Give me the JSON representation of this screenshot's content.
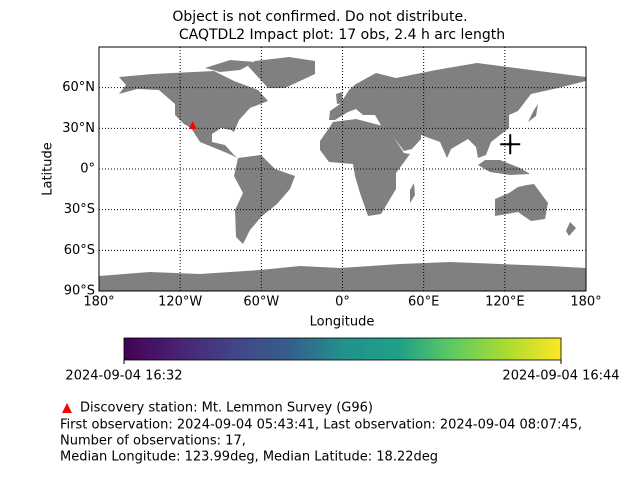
{
  "chart_data": {
    "type": "map",
    "warning": "Object is not confirmed. Do not distribute.",
    "title": "CAQTDL2 Impact plot: 17 obs, 2.4 h arc length",
    "xlabel": "Longitude",
    "ylabel": "Latitude",
    "xlim": [
      -180,
      180
    ],
    "ylim": [
      -90,
      90
    ],
    "xticks": [
      {
        "value": -180,
        "label": "180°"
      },
      {
        "value": -120,
        "label": "120°W"
      },
      {
        "value": -60,
        "label": "60°W"
      },
      {
        "value": 0,
        "label": "0°"
      },
      {
        "value": 60,
        "label": "60°E"
      },
      {
        "value": 120,
        "label": "120°E"
      },
      {
        "value": 180,
        "label": "180°"
      }
    ],
    "yticks": [
      {
        "value": -90,
        "label": "90°S"
      },
      {
        "value": -60,
        "label": "60°S"
      },
      {
        "value": -30,
        "label": "30°S"
      },
      {
        "value": 0,
        "label": "0°"
      },
      {
        "value": 30,
        "label": "30°N"
      },
      {
        "value": 60,
        "label": "60°N"
      }
    ],
    "grid": true,
    "land_color": "#808080",
    "station": {
      "label": "Discovery station: Mt. Lemmon Survey (G96)",
      "lon": -110.8,
      "lat": 32.4,
      "color": "#ff0000"
    },
    "impact": {
      "lon": 123.99,
      "lat": 18.22,
      "color": "#000000"
    },
    "colorbar": {
      "colormap": "viridis",
      "labels": [
        "2024-09-04 16:32",
        "2024-09-04 16:44"
      ]
    },
    "info_lines": [
      "First observation: 2024-09-04 05:43:41, Last observation: 2024-09-04 08:07:45,",
      "Number of observations: 17,",
      "Median Longitude: 123.99deg, Median Latitude: 18.22deg"
    ]
  }
}
